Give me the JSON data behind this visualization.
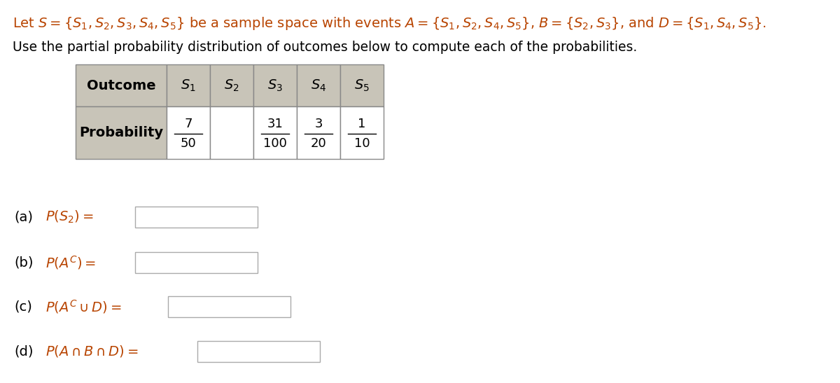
{
  "bg_color": "#ffffff",
  "figsize": [
    12.0,
    5.47
  ],
  "dpi": 100,
  "header_text": "Let $S = \\{S_1, S_2, S_3, S_4, S_5\\}$ be a sample space with events $A = \\{S_1, S_2, S_4, S_5\\}$, $B = \\{S_2, S_3\\}$, and $D = \\{S_1, S_4, S_5\\}$.",
  "subheader_text": "Use the partial probability distribution of outcomes below to compute each of the probabilities.",
  "table_label_bg": "#c8c4b8",
  "table_header_bg": "#c8c4b8",
  "table_cell_bg": "#ffffff",
  "table_border_color": "#888888",
  "outcomes_math": [
    "$S_1$",
    "$S_2$",
    "$S_3$",
    "$S_4$",
    "$S_5$"
  ],
  "prob_numerators": [
    "7",
    "",
    "31",
    "3",
    "1"
  ],
  "prob_denominators": [
    "50",
    "",
    "100",
    "20",
    "10"
  ],
  "questions_label": [
    "(a)",
    "(b)",
    "(c)",
    "(d)"
  ],
  "questions_math": [
    "$P(S_2) =$",
    "$P(A^C) =$",
    "$P(A^C \\cup D) =$",
    "$P(A \\cap B \\cap D) =$"
  ],
  "text_color": "#000000",
  "orange_color": "#b84400",
  "font_size_header": 14,
  "font_size_subheader": 13.5,
  "font_size_table": 13,
  "font_size_questions": 14,
  "box_border_color": "#aaaaaa"
}
